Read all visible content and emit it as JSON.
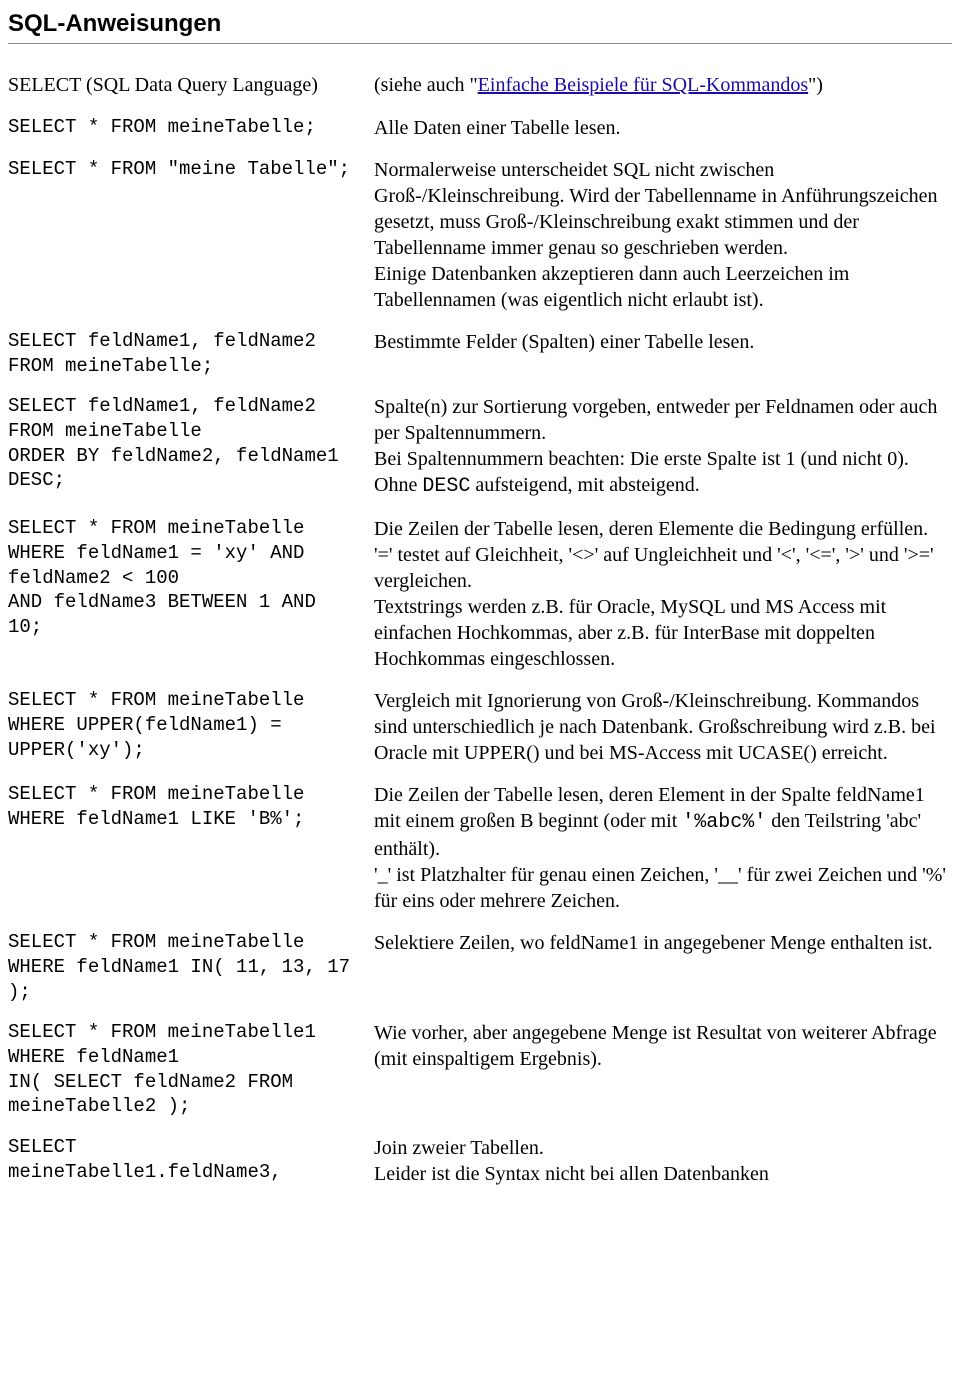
{
  "title": "SQL-Anweisungen",
  "rows": [
    {
      "left_nonmono": "SELECT (SQL Data Query Language)",
      "right_pre": "(siehe auch \"",
      "right_link": "Einfache Beispiele für SQL-Kommandos",
      "right_post": "\")"
    },
    {
      "left": "SELECT * FROM meineTabelle;",
      "right": "Alle Daten einer Tabelle lesen."
    },
    {
      "left": "SELECT * FROM \"meine Tabelle\";",
      "right": "Normalerweise unterscheidet SQL nicht zwischen Groß-/Kleinschreibung. Wird der Tabellenname in Anführungszeichen gesetzt, muss Groß-/Kleinschreibung exakt stimmen und der Tabellenname immer genau so geschrieben werden.\nEinige Datenbanken akzeptieren dann auch Leerzeichen im Tabellennamen (was eigentlich nicht erlaubt ist)."
    },
    {
      "left": "SELECT feldName1, feldName2 FROM meineTabelle;",
      "right": "Bestimmte Felder (Spalten) einer Tabelle lesen."
    },
    {
      "left": "SELECT feldName1, feldName2 FROM meineTabelle\nORDER BY feldName2, feldName1 DESC;",
      "right_parts": [
        {
          "t": "Spalte(n) zur Sortierung vorgeben, entweder per Feldnamen oder auch per Spaltennummern.\nBei Spaltennummern beachten: Die erste Spalte ist 1 (und nicht 0).\nOhne "
        },
        {
          "t": "DESC",
          "mono": true
        },
        {
          "t": " aufsteigend, mit absteigend."
        }
      ]
    },
    {
      "left": "SELECT * FROM meineTabelle WHERE feldName1 = 'xy' AND feldName2 < 100\nAND feldName3 BETWEEN 1 AND 10;",
      "right": "Die Zeilen der Tabelle lesen, deren Elemente die Bedingung erfüllen.\n'=' testet auf Gleichheit, '<>' auf Ungleichheit und '<', '<=', '>' und '>=' vergleichen.\nTextstrings werden z.B. für Oracle, MySQL und MS Access mit einfachen Hochkommas, aber z.B. für InterBase mit doppelten Hochkommas eingeschlossen."
    },
    {
      "left": "SELECT * FROM meineTabelle WHERE UPPER(feldName1) = UPPER('xy');",
      "right": "Vergleich mit Ignorierung von Groß-/Kleinschreibung. Kommandos sind unterschiedlich je nach Datenbank. Großschreibung wird z.B. bei Oracle mit UPPER() und bei MS-Access mit UCASE() erreicht."
    },
    {
      "left": "SELECT * FROM meineTabelle WHERE feldName1 LIKE 'B%';",
      "right_parts": [
        {
          "t": "Die Zeilen der Tabelle lesen, deren Element in der Spalte feldName1 mit einem großen B beginnt (oder mit "
        },
        {
          "t": "'%abc%'",
          "mono": true
        },
        {
          "t": " den Teilstring 'abc' enthält).\n'_' ist Platzhalter für genau einen Zeichen, '__' für zwei Zeichen und '%' für eins oder mehrere Zeichen."
        }
      ]
    },
    {
      "left": "SELECT * FROM meineTabelle WHERE feldName1 IN( 11, 13, 17 );",
      "right": "Selektiere Zeilen, wo feldName1 in angegebener Menge enthalten ist."
    },
    {
      "left": "SELECT * FROM meineTabelle1 WHERE feldName1\nIN( SELECT feldName2 FROM meineTabelle2 );",
      "right": "Wie vorher, aber angegebene Menge ist Resultat von weiterer Abfrage (mit einspaltigem Ergebnis)."
    },
    {
      "left": "SELECT meineTabelle1.feldName3,",
      "right": "Join zweier Tabellen.\nLeider ist die Syntax nicht bei allen Datenbanken"
    }
  ]
}
